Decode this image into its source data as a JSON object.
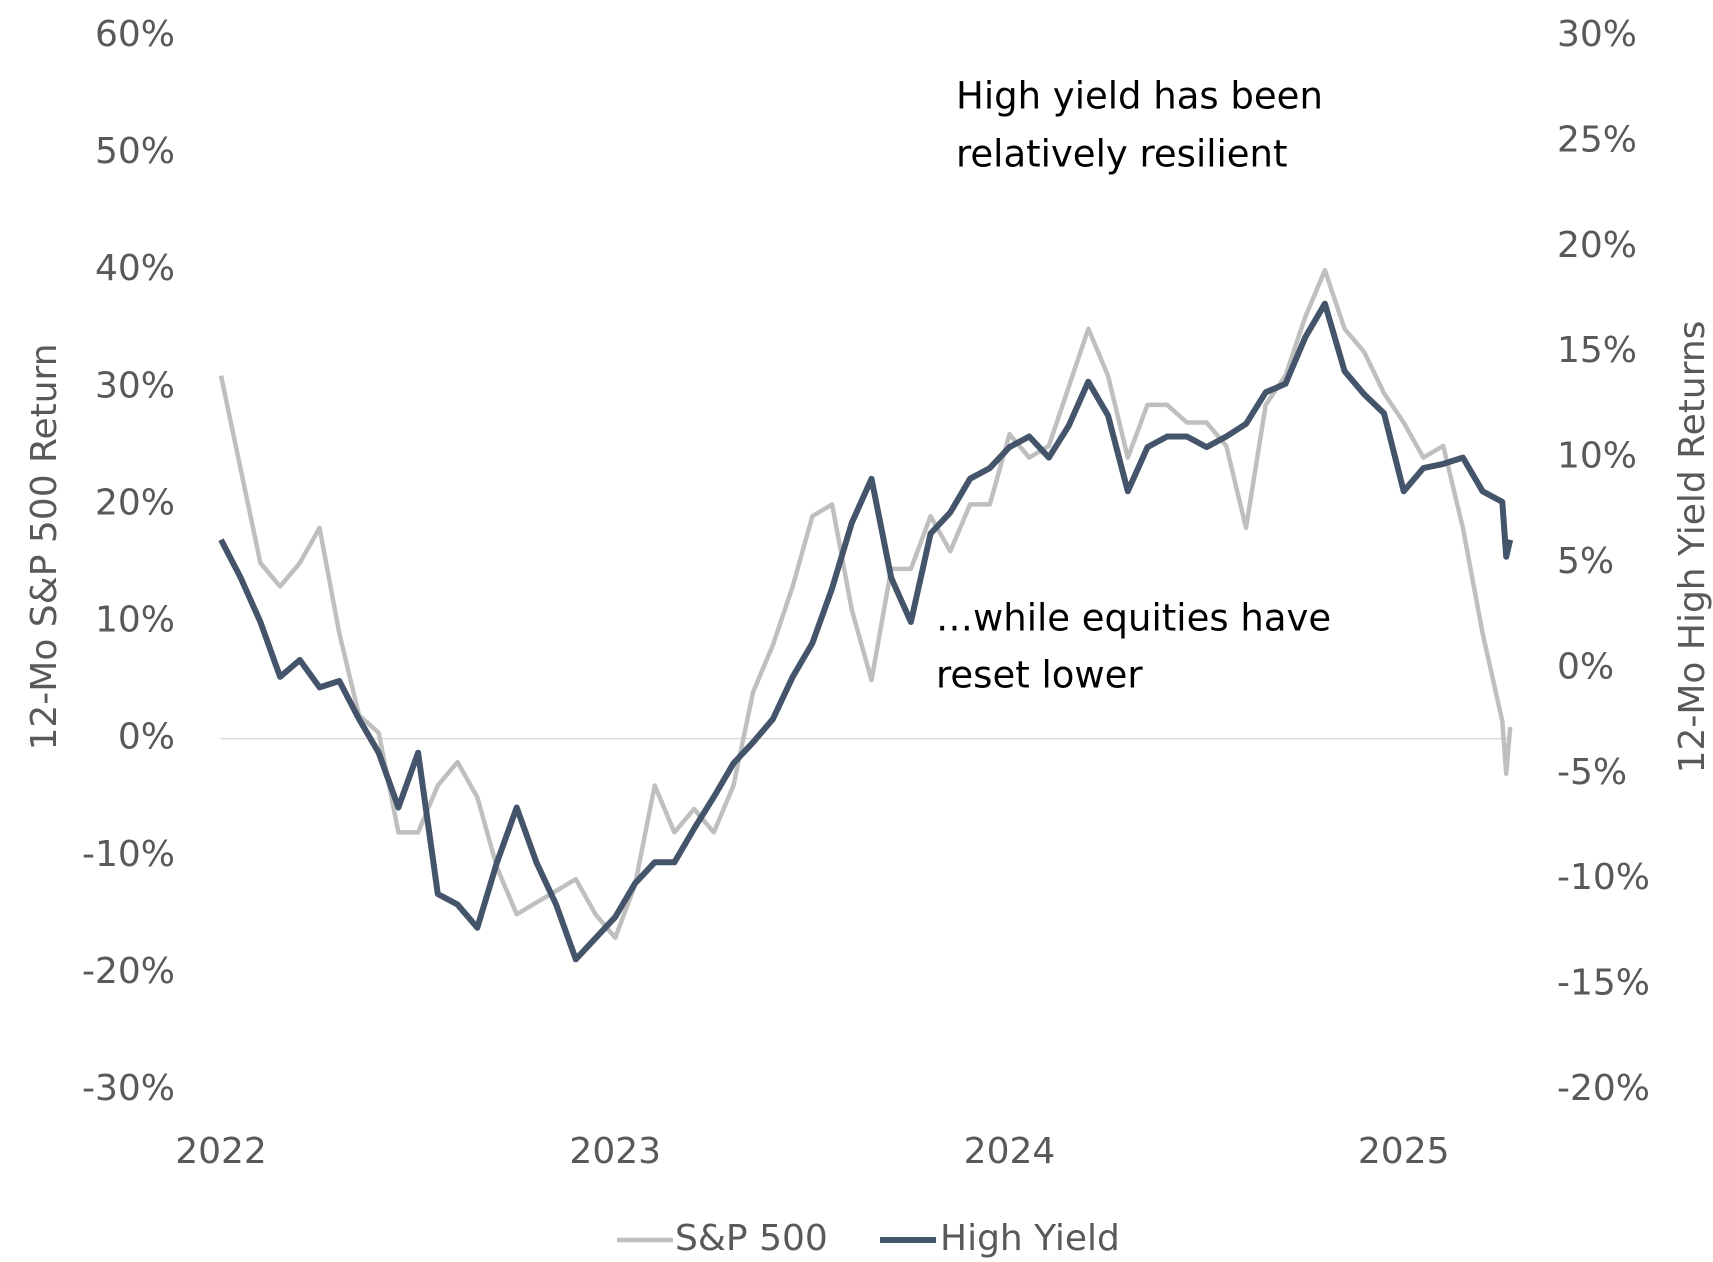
{
  "chart_data": {
    "type": "line",
    "y_label": "12-Mo S&P 500 Return",
    "y2_label": "12-Mo High Yield Returns",
    "annotations": [
      "High yield has been",
      "relatively resilient",
      "…while equities have",
      "reset lower"
    ],
    "x": [
      2022.0,
      2022.05,
      2022.1,
      2022.15,
      2022.2,
      2022.25,
      2022.3,
      2022.35,
      2022.4,
      2022.45,
      2022.5,
      2022.55,
      2022.6,
      2022.65,
      2022.7,
      2022.75,
      2022.8,
      2022.85,
      2022.9,
      2022.95,
      2023.0,
      2023.05,
      2023.1,
      2023.15,
      2023.2,
      2023.25,
      2023.3,
      2023.35,
      2023.4,
      2023.45,
      2023.5,
      2023.55,
      2023.6,
      2023.65,
      2023.7,
      2023.75,
      2023.8,
      2023.85,
      2023.9,
      2023.95,
      2024.0,
      2024.05,
      2024.1,
      2024.15,
      2024.2,
      2024.25,
      2024.3,
      2024.35,
      2024.4,
      2024.45,
      2024.5,
      2024.55,
      2024.6,
      2024.65,
      2024.7,
      2024.75,
      2024.8,
      2024.85,
      2024.9,
      2024.95,
      2025.0,
      2025.05,
      2025.1,
      2025.15,
      2025.2,
      2025.25,
      2025.26,
      2025.27
    ],
    "xlim": [
      2022,
      2025.3
    ],
    "xticks": [
      2022,
      2023,
      2024,
      2025
    ],
    "ylim": [
      -30,
      60
    ],
    "yticks": [
      {
        "value": -30,
        "label": "-30%"
      },
      {
        "value": -20,
        "label": "-20%"
      },
      {
        "value": -10,
        "label": "-10%"
      },
      {
        "value": 0,
        "label": "0%"
      },
      {
        "value": 10,
        "label": "10%"
      },
      {
        "value": 20,
        "label": "20%"
      },
      {
        "value": 30,
        "label": "30%"
      },
      {
        "value": 40,
        "label": "40%"
      },
      {
        "value": 50,
        "label": "50%"
      },
      {
        "value": 60,
        "label": "60%"
      }
    ],
    "y2lim": [
      -20,
      30
    ],
    "y2ticks": [
      {
        "value": -20,
        "label": "-20%"
      },
      {
        "value": -15,
        "label": "-15%"
      },
      {
        "value": -10,
        "label": "-10%"
      },
      {
        "value": -5,
        "label": "-5%"
      },
      {
        "value": 0,
        "label": "0%"
      },
      {
        "value": 5,
        "label": "5%"
      },
      {
        "value": 10,
        "label": "10%"
      },
      {
        "value": 15,
        "label": "15%"
      },
      {
        "value": 20,
        "label": "20%"
      },
      {
        "value": 25,
        "label": "25%"
      },
      {
        "value": 30,
        "label": "30%"
      }
    ],
    "zero_line": true,
    "series": [
      {
        "name": "S&P 500",
        "color": "#bfbfbf",
        "values": [
          31,
          23,
          15,
          13,
          15,
          18,
          9,
          2,
          0.5,
          -8,
          -8,
          -4,
          -2,
          -5,
          -11,
          -15,
          -14,
          -13,
          -12,
          -15,
          -17,
          -12.5,
          -4,
          -8,
          -6,
          -8,
          -4,
          4,
          8,
          13,
          19,
          20,
          11,
          5,
          14.5,
          14.5,
          19,
          16,
          20,
          20,
          26,
          24,
          25,
          30,
          35,
          31,
          24,
          28.5,
          28.5,
          27,
          27,
          25,
          18,
          28.5,
          31,
          36,
          40,
          35,
          33,
          29.5,
          27,
          24,
          25,
          18,
          9,
          1.5,
          -3,
          1
        ]
      },
      {
        "name": "High Yield",
        "color": "#44546a",
        "axis": "y2",
        "values": [
          6.1,
          4.3,
          2.2,
          -0.4,
          0.4,
          -0.9,
          -0.6,
          -2.4,
          -4,
          -6.6,
          -4,
          -10.7,
          -11.2,
          -12.3,
          -9.2,
          -6.6,
          -9.2,
          -11.2,
          -13.8,
          -12.8,
          -11.8,
          -10.2,
          -9.2,
          -9.2,
          -7.6,
          -6.1,
          -4.5,
          -3.5,
          -2.4,
          -0.4,
          1.2,
          3.8,
          6.9,
          9,
          4.3,
          2.2,
          6.4,
          7.4,
          9,
          9.5,
          10.5,
          11,
          10,
          11.5,
          13.6,
          12,
          8.4,
          10.5,
          11,
          11,
          10.5,
          11,
          11.6,
          13.1,
          13.5,
          15.7,
          17.3,
          14.1,
          13,
          12.1,
          8.4,
          9.5,
          9.7,
          10,
          8.4,
          7.9,
          5.3,
          6.1
        ]
      }
    ]
  }
}
